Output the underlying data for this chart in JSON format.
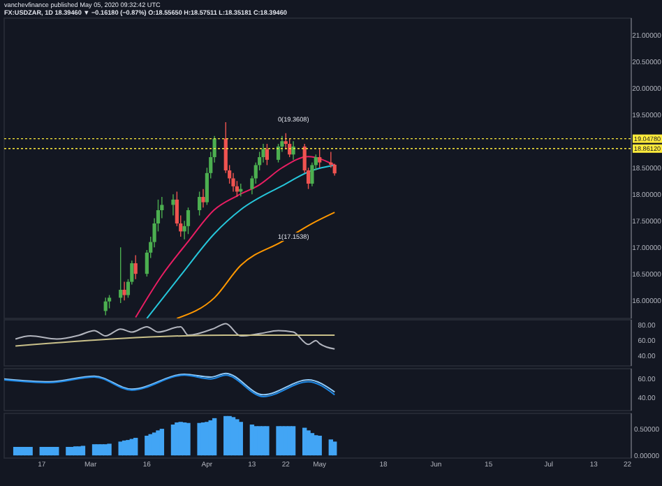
{
  "chart_data": [
    {
      "type": "candlestick",
      "subtitle": "vanchevfinance published May 05, 2020 09:32:42 UTC",
      "title": "FX:USDZAR, 1D 18.39460 ▼ −0.16180 (−0.87%) O:18.55650 H:18.57511 L:18.35181 C:18.39460",
      "x": [
        "2020-03-05",
        "2020-03-06",
        "2020-03-09",
        "2020-03-10",
        "2020-03-11",
        "2020-03-12",
        "2020-03-13",
        "2020-03-16",
        "2020-03-17",
        "2020-03-18",
        "2020-03-19",
        "2020-03-20",
        "2020-03-23",
        "2020-03-24",
        "2020-03-25",
        "2020-03-26",
        "2020-03-27",
        "2020-03-30",
        "2020-03-31",
        "2020-04-01",
        "2020-04-02",
        "2020-04-03",
        "2020-04-06",
        "2020-04-07",
        "2020-04-08",
        "2020-04-09",
        "2020-04-10",
        "2020-04-13",
        "2020-04-14",
        "2020-04-15",
        "2020-04-16",
        "2020-04-17",
        "2020-04-20",
        "2020-04-21",
        "2020-04-22",
        "2020-04-23",
        "2020-04-24",
        "2020-04-27",
        "2020-04-28",
        "2020-04-29",
        "2020-04-30",
        "2020-05-01",
        "2020-05-04",
        "2020-05-05"
      ],
      "ohlc": [
        [
          15.8,
          16.05,
          15.72,
          15.98
        ],
        [
          15.98,
          16.1,
          15.85,
          16.05
        ],
        [
          16.05,
          17.0,
          15.95,
          16.2
        ],
        [
          16.2,
          16.35,
          16.0,
          16.1
        ],
        [
          16.1,
          16.4,
          16.05,
          16.35
        ],
        [
          16.35,
          16.75,
          16.3,
          16.7
        ],
        [
          16.7,
          16.85,
          16.4,
          16.5
        ],
        [
          16.5,
          16.95,
          16.45,
          16.9
        ],
        [
          16.9,
          17.2,
          16.8,
          17.1
        ],
        [
          17.1,
          17.55,
          17.0,
          17.45
        ],
        [
          17.45,
          17.9,
          17.3,
          17.7
        ],
        [
          17.7,
          17.95,
          17.55,
          17.8
        ],
        [
          17.8,
          18.0,
          17.6,
          17.9
        ],
        [
          17.9,
          18.05,
          17.4,
          17.45
        ],
        [
          17.45,
          17.6,
          17.2,
          17.3
        ],
        [
          17.3,
          17.5,
          17.15,
          17.4
        ],
        [
          17.4,
          17.75,
          17.25,
          17.7
        ],
        [
          17.7,
          18.05,
          17.6,
          17.95
        ],
        [
          17.95,
          18.1,
          17.75,
          17.85
        ],
        [
          17.85,
          18.5,
          17.8,
          18.4
        ],
        [
          18.4,
          18.8,
          18.3,
          18.7
        ],
        [
          18.7,
          19.1,
          18.6,
          19.05
        ],
        [
          19.05,
          19.36,
          18.4,
          18.45
        ],
        [
          18.45,
          18.55,
          18.2,
          18.3
        ],
        [
          18.3,
          18.4,
          18.05,
          18.15
        ],
        [
          18.15,
          18.25,
          17.95,
          18.05
        ],
        [
          18.05,
          18.2,
          17.96,
          18.1
        ],
        [
          18.1,
          18.35,
          18.0,
          18.3
        ],
        [
          18.3,
          18.6,
          18.2,
          18.55
        ],
        [
          18.55,
          18.8,
          18.45,
          18.7
        ],
        [
          18.7,
          18.95,
          18.6,
          18.85
        ],
        [
          18.85,
          18.95,
          18.55,
          18.65
        ],
        [
          18.65,
          18.95,
          18.6,
          18.9
        ],
        [
          18.9,
          19.1,
          18.8,
          19.0
        ],
        [
          19.0,
          19.15,
          18.85,
          18.95
        ],
        [
          18.95,
          19.05,
          18.7,
          18.75
        ],
        [
          18.75,
          19.0,
          18.65,
          18.9
        ],
        [
          18.9,
          18.95,
          18.4,
          18.45
        ],
        [
          18.45,
          18.5,
          18.1,
          18.2
        ],
        [
          18.2,
          18.6,
          18.15,
          18.55
        ],
        [
          18.55,
          18.75,
          18.45,
          18.7
        ],
        [
          18.7,
          18.85,
          18.5,
          18.6
        ],
        [
          18.6,
          18.8,
          18.5,
          18.5565
        ],
        [
          18.5565,
          18.57511,
          18.35181,
          18.3946
        ]
      ],
      "colors": [
        "#4caf50",
        "#4caf50",
        "#4caf50",
        "#ef5350",
        "#4caf50",
        "#4caf50",
        "#ef5350",
        "#4caf50",
        "#4caf50",
        "#4caf50",
        "#4caf50",
        "#4caf50",
        "#4caf50",
        "#ef5350",
        "#ef5350",
        "#4caf50",
        "#4caf50",
        "#4caf50",
        "#ef5350",
        "#4caf50",
        "#4caf50",
        "#4caf50",
        "#ef5350",
        "#ef5350",
        "#ef5350",
        "#ef5350",
        "#4caf50",
        "#4caf50",
        "#4caf50",
        "#4caf50",
        "#4caf50",
        "#ef5350",
        "#4caf50",
        "#4caf50",
        "#ef5350",
        "#ef5350",
        "#4caf50",
        "#ef5350",
        "#ef5350",
        "#4caf50",
        "#4caf50",
        "#ef5350",
        "#ef5350",
        "#ef5350"
      ],
      "series": [
        {
          "type": "line",
          "color": "#e91e63",
          "x": [
            "2020-03-13",
            "2020-03-20",
            "2020-03-27",
            "2020-04-03",
            "2020-04-09",
            "2020-04-15",
            "2020-04-21",
            "2020-04-28",
            "2020-05-05"
          ],
          "values": [
            15.68,
            16.47,
            17.11,
            17.71,
            17.97,
            18.18,
            18.5,
            18.71,
            18.55
          ]
        },
        {
          "type": "line",
          "color": "#26c6da",
          "x": [
            "2020-03-16",
            "2020-03-25",
            "2020-04-03",
            "2020-04-10",
            "2020-04-21",
            "2020-04-29",
            "2020-05-05"
          ],
          "values": [
            15.66,
            16.47,
            17.26,
            17.71,
            18.16,
            18.45,
            18.55
          ]
        },
        {
          "type": "line",
          "color": "#ff9800",
          "x": [
            "2020-03-24",
            "2020-04-03",
            "2020-04-10",
            "2020-04-21",
            "2020-04-29",
            "2020-05-05"
          ],
          "values": [
            15.66,
            16.05,
            16.66,
            17.11,
            17.45,
            17.66
          ]
        }
      ],
      "xlim": [
        "2020-02-07",
        "2020-07-23"
      ],
      "ylim": [
        15.66,
        21.32
      ],
      "yticks": [
        {
          "value": 16,
          "label": "16.00000"
        },
        {
          "value": 16.5,
          "label": "16.50000"
        },
        {
          "value": 17,
          "label": "17.00000"
        },
        {
          "value": 17.5,
          "label": "17.50000"
        },
        {
          "value": 18,
          "label": "18.00000"
        },
        {
          "value": 18.5,
          "label": "18.50000"
        },
        {
          "value": 19.5,
          "label": "19.50000"
        },
        {
          "value": 20,
          "label": "20.00000"
        },
        {
          "value": 20.5,
          "label": "20.50000"
        },
        {
          "value": 21,
          "label": "21.00000"
        }
      ],
      "ref_lines": [
        {
          "axis": "y",
          "value": 19.0478,
          "label": "19.04780",
          "color": "#ffeb3b",
          "line_style": "dotted"
        },
        {
          "axis": "y",
          "value": 18.8612,
          "label": "18.86120",
          "color": "#ffeb3b",
          "line_style": "dotted"
        }
      ],
      "annotations": [
        "0(19.3608)",
        "1(17.1538)"
      ],
      "tick_labels": "y"
    },
    {
      "type": "line",
      "series": [
        {
          "color": "#b2b5be",
          "x": [
            "2020-02-10",
            "2020-02-14",
            "2020-02-21",
            "2020-02-27",
            "2020-03-02",
            "2020-03-05",
            "2020-03-09",
            "2020-03-12",
            "2020-03-16",
            "2020-03-19",
            "2020-03-25",
            "2020-03-27",
            "2020-04-03",
            "2020-04-06",
            "2020-04-10",
            "2020-04-15",
            "2020-04-20",
            "2020-04-24",
            "2020-04-28",
            "2020-04-30",
            "2020-05-01",
            "2020-05-05"
          ],
          "values": [
            62,
            66,
            62,
            67,
            73,
            66,
            75,
            71,
            78,
            71,
            78,
            67,
            76,
            82,
            66,
            69,
            73,
            71,
            55,
            60,
            56,
            49
          ]
        },
        {
          "color": "#c9c08a",
          "x": [
            "2020-02-10",
            "2020-04-06",
            "2020-05-05"
          ],
          "values": [
            53,
            67,
            67
          ]
        }
      ],
      "xlim": [
        "2020-02-07",
        "2020-07-23"
      ],
      "ylim": [
        27,
        87
      ],
      "yticks": [
        {
          "value": 40,
          "label": "40.00"
        },
        {
          "value": 60,
          "label": "60.00"
        },
        {
          "value": 80,
          "label": "80.00"
        }
      ],
      "tick_labels": "y"
    },
    {
      "type": "line",
      "series": [
        {
          "color": "#90caf9",
          "x": [
            "2020-02-07",
            "2020-02-19",
            "2020-03-02",
            "2020-03-12",
            "2020-03-26",
            "2020-04-02",
            "2020-04-06",
            "2020-04-16",
            "2020-04-28",
            "2020-05-05"
          ],
          "values": [
            60,
            57,
            63,
            49,
            65,
            62,
            66,
            43,
            59,
            46
          ]
        },
        {
          "color": "#1e88e5",
          "x": [
            "2020-02-07",
            "2020-02-19",
            "2020-03-02",
            "2020-03-12",
            "2020-03-26",
            "2020-04-02",
            "2020-04-06",
            "2020-04-16",
            "2020-04-28",
            "2020-05-05"
          ],
          "values": [
            59,
            56,
            62,
            48,
            64,
            60,
            64,
            41,
            57,
            43
          ]
        }
      ],
      "xlim": [
        "2020-02-07",
        "2020-07-23"
      ],
      "ylim": [
        26,
        71
      ],
      "yticks": [
        {
          "value": 40,
          "label": "40.00"
        },
        {
          "value": 60,
          "label": "60.00"
        }
      ],
      "tick_labels": "y"
    },
    {
      "type": "bar",
      "color": "#42a5f5",
      "x": [
        "2020-02-10",
        "2020-02-11",
        "2020-02-12",
        "2020-02-13",
        "2020-02-14",
        "2020-02-17",
        "2020-02-18",
        "2020-02-19",
        "2020-02-20",
        "2020-02-21",
        "2020-02-24",
        "2020-02-25",
        "2020-02-26",
        "2020-02-27",
        "2020-02-28",
        "2020-03-02",
        "2020-03-03",
        "2020-03-04",
        "2020-03-05",
        "2020-03-06",
        "2020-03-09",
        "2020-03-10",
        "2020-03-11",
        "2020-03-12",
        "2020-03-13",
        "2020-03-16",
        "2020-03-17",
        "2020-03-18",
        "2020-03-19",
        "2020-03-20",
        "2020-03-23",
        "2020-03-24",
        "2020-03-25",
        "2020-03-26",
        "2020-03-27",
        "2020-03-30",
        "2020-03-31",
        "2020-04-01",
        "2020-04-02",
        "2020-04-03",
        "2020-04-06",
        "2020-04-07",
        "2020-04-08",
        "2020-04-09",
        "2020-04-10",
        "2020-04-13",
        "2020-04-14",
        "2020-04-15",
        "2020-04-16",
        "2020-04-17",
        "2020-04-20",
        "2020-04-21",
        "2020-04-22",
        "2020-04-23",
        "2020-04-24",
        "2020-04-27",
        "2020-04-28",
        "2020-04-29",
        "2020-04-30",
        "2020-05-01",
        "2020-05-04",
        "2020-05-05"
      ],
      "values": [
        0.16,
        0.16,
        0.16,
        0.16,
        0.16,
        0.16,
        0.16,
        0.16,
        0.16,
        0.16,
        0.16,
        0.16,
        0.17,
        0.17,
        0.18,
        0.21,
        0.21,
        0.21,
        0.21,
        0.22,
        0.26,
        0.28,
        0.29,
        0.31,
        0.33,
        0.37,
        0.4,
        0.43,
        0.47,
        0.5,
        0.58,
        0.62,
        0.63,
        0.62,
        0.61,
        0.61,
        0.62,
        0.63,
        0.66,
        0.7,
        0.74,
        0.74,
        0.72,
        0.68,
        0.63,
        0.58,
        0.55,
        0.55,
        0.55,
        0.55,
        0.55,
        0.55,
        0.55,
        0.55,
        0.55,
        0.52,
        0.47,
        0.42,
        0.38,
        0.37,
        0.3,
        0.26
      ],
      "xlim": [
        "2020-02-07",
        "2020-07-23"
      ],
      "xticks": [
        {
          "value": "2020-02-17",
          "label": "17"
        },
        {
          "value": "2020-03-01",
          "label": "Mar"
        },
        {
          "value": "2020-03-16",
          "label": "16"
        },
        {
          "value": "2020-04-01",
          "label": "Apr"
        },
        {
          "value": "2020-04-13",
          "label": "13"
        },
        {
          "value": "2020-04-22",
          "label": "22"
        },
        {
          "value": "2020-05-01",
          "label": "May"
        },
        {
          "value": "2020-05-18",
          "label": "18"
        },
        {
          "value": "2020-06-01",
          "label": "Jun"
        },
        {
          "value": "2020-06-15",
          "label": "15"
        },
        {
          "value": "2020-07-01",
          "label": "Jul"
        },
        {
          "value": "2020-07-13",
          "label": "13"
        },
        {
          "value": "2020-07-22",
          "label": "22"
        }
      ],
      "ylim": [
        -0.05,
        0.79
      ],
      "yticks": [
        {
          "value": 0,
          "label": "0.00000"
        },
        {
          "value": 0.5,
          "label": "0.50000"
        }
      ]
    }
  ]
}
